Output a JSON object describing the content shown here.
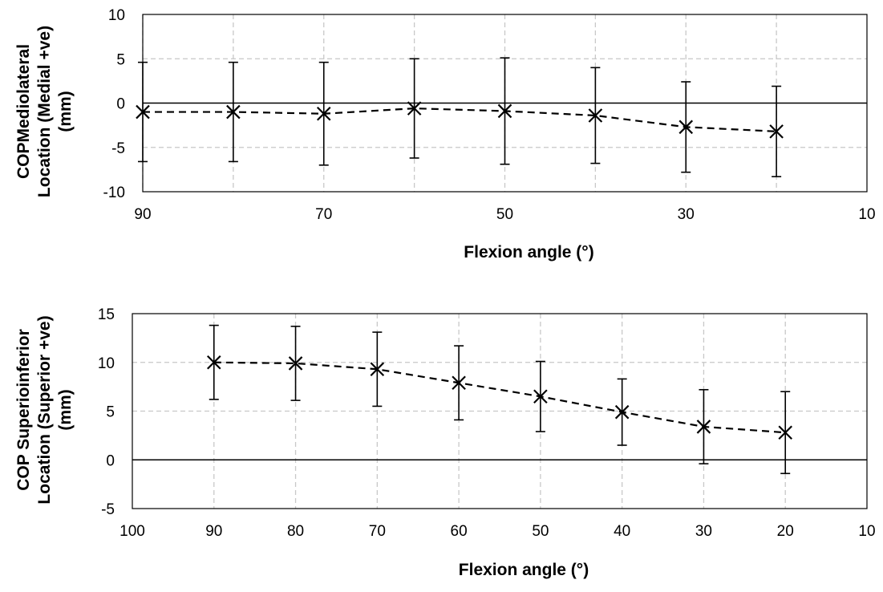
{
  "chart_data": [
    {
      "type": "line",
      "ylabel": "COPMediolateral Location (Medial +ve) (mm)",
      "ylabel_lines": [
        "COPMediolateral",
        "Location (Medial +ve)",
        "(mm)"
      ],
      "xlabel": "Flexion angle (°)",
      "x_reversed": true,
      "xlim": [
        90,
        10
      ],
      "ylim": [
        -10,
        10
      ],
      "x_ticks": [
        90,
        70,
        50,
        30,
        10
      ],
      "y_ticks": [
        10,
        5,
        0,
        -5,
        -10
      ],
      "x_grid": [
        90,
        80,
        70,
        60,
        50,
        40,
        30,
        20
      ],
      "y_grid": [
        5,
        -5
      ],
      "grid": true,
      "marker": "x",
      "line_style": "dashed",
      "series": [
        {
          "x": [
            90,
            80,
            70,
            60,
            50,
            40,
            30,
            20
          ],
          "y": [
            -1.0,
            -1.0,
            -1.2,
            -0.6,
            -0.9,
            -1.4,
            -2.7,
            -3.2
          ],
          "error": [
            5.6,
            5.6,
            5.8,
            5.6,
            6.0,
            5.4,
            5.1,
            5.1
          ]
        }
      ]
    },
    {
      "type": "line",
      "ylabel": "COP Superioinferior Location (Superior +ve) (mm)",
      "ylabel_lines": [
        "COP Superioinferior",
        "Location (Superior +ve)",
        "(mm)"
      ],
      "xlabel": "Flexion angle (°)",
      "x_reversed": true,
      "xlim": [
        100,
        10
      ],
      "ylim": [
        -5,
        15
      ],
      "x_ticks": [
        100,
        90,
        80,
        70,
        60,
        50,
        40,
        30,
        20,
        10
      ],
      "y_ticks": [
        15,
        10,
        5,
        0,
        -5
      ],
      "x_grid": [
        90,
        80,
        70,
        60,
        50,
        40,
        30,
        20
      ],
      "y_grid": [
        10,
        5
      ],
      "grid": true,
      "marker": "x",
      "line_style": "dashed",
      "series": [
        {
          "x": [
            90,
            80,
            70,
            60,
            50,
            40,
            30,
            20
          ],
          "y": [
            10.0,
            9.9,
            9.3,
            7.9,
            6.5,
            4.9,
            3.4,
            2.8
          ],
          "error": [
            3.8,
            3.8,
            3.8,
            3.8,
            3.6,
            3.4,
            3.8,
            4.2
          ]
        }
      ]
    }
  ]
}
